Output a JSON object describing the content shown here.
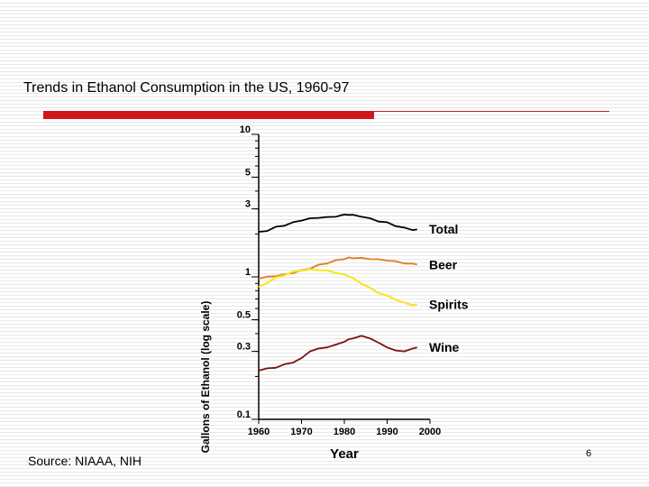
{
  "slide": {
    "title": "Trends in Ethanol Consumption in the US, 1960-97",
    "source": "Source: NIAAA, NIH",
    "page_number": "6",
    "accent_color": "#d0161b"
  },
  "chart_data": {
    "type": "line",
    "title": "Trends in Ethanol Consumption in the US, 1960-97",
    "xlabel": "Year",
    "ylabel": "Gallons of Ethanol (log scale)",
    "yscale": "log",
    "xlim": [
      1960,
      2000
    ],
    "ylim": [
      0.1,
      10
    ],
    "x_ticks": [
      "1960",
      "1970",
      "1980",
      "1990",
      "2000"
    ],
    "y_ticks": [
      "0.1",
      "0.3",
      "0.5",
      "1",
      "3",
      "5",
      "10"
    ],
    "x": [
      1960,
      1962,
      1964,
      1966,
      1968,
      1970,
      1972,
      1974,
      1976,
      1978,
      1980,
      1981,
      1982,
      1984,
      1986,
      1988,
      1990,
      1992,
      1994,
      1996,
      1997
    ],
    "series": [
      {
        "name": "Total",
        "label": "Total",
        "color": "#000000",
        "values": [
          2.07,
          2.13,
          2.25,
          2.32,
          2.42,
          2.52,
          2.58,
          2.63,
          2.63,
          2.68,
          2.74,
          2.76,
          2.73,
          2.68,
          2.58,
          2.48,
          2.42,
          2.3,
          2.22,
          2.16,
          2.16
        ]
      },
      {
        "name": "Beer",
        "label": "Beer",
        "color": "#e07b1e",
        "values": [
          0.97,
          0.99,
          1.01,
          1.03,
          1.06,
          1.1,
          1.14,
          1.2,
          1.24,
          1.29,
          1.33,
          1.35,
          1.35,
          1.34,
          1.33,
          1.31,
          1.3,
          1.27,
          1.24,
          1.22,
          1.22
        ]
      },
      {
        "name": "Spirits",
        "label": "Spirits",
        "color": "#f5e62a",
        "values": [
          0.85,
          0.92,
          0.99,
          1.04,
          1.09,
          1.12,
          1.13,
          1.13,
          1.11,
          1.08,
          1.04,
          1.02,
          0.98,
          0.91,
          0.84,
          0.78,
          0.74,
          0.7,
          0.66,
          0.64,
          0.64
        ]
      },
      {
        "name": "Wine",
        "label": "Wine",
        "color": "#7a1010",
        "values": [
          0.22,
          0.225,
          0.23,
          0.24,
          0.25,
          0.265,
          0.3,
          0.31,
          0.32,
          0.33,
          0.35,
          0.36,
          0.37,
          0.38,
          0.37,
          0.34,
          0.32,
          0.3,
          0.3,
          0.31,
          0.32
        ]
      }
    ]
  }
}
